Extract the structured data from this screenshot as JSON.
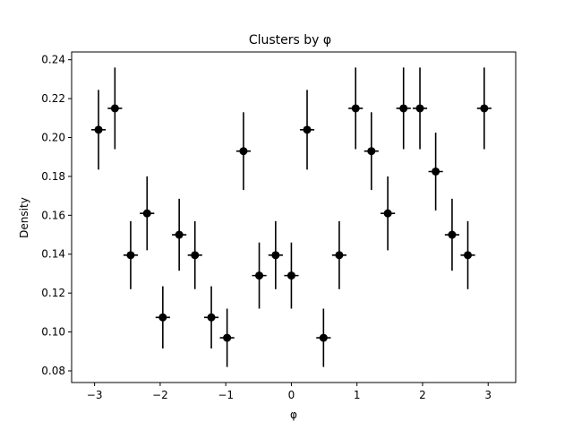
{
  "chart_data": {
    "type": "scatter",
    "title": "Clusters by φ",
    "xlabel": "φ",
    "ylabel": "Density",
    "xlim": [
      -3.35,
      3.42
    ],
    "ylim": [
      0.074,
      0.244
    ],
    "x_ticks": [
      -3,
      -2,
      -1,
      0,
      1,
      2,
      3
    ],
    "x_tick_labels": [
      "−3",
      "−2",
      "−1",
      "0",
      "1",
      "2",
      "3"
    ],
    "y_ticks": [
      0.08,
      0.1,
      0.12,
      0.14,
      0.16,
      0.18,
      0.2,
      0.22,
      0.24
    ],
    "y_tick_labels": [
      "0.08",
      "0.10",
      "0.12",
      "0.14",
      "0.16",
      "0.18",
      "0.20",
      "0.22",
      "0.24"
    ],
    "grid": false,
    "marker_color": "#000000",
    "x_error_halfwidth": 0.11,
    "points": [
      {
        "x": -2.94,
        "y": 0.204,
        "yerr": 0.0205
      },
      {
        "x": -2.69,
        "y": 0.215,
        "yerr": 0.021
      },
      {
        "x": -2.45,
        "y": 0.1395,
        "yerr": 0.0175
      },
      {
        "x": -2.2,
        "y": 0.161,
        "yerr": 0.019
      },
      {
        "x": -1.96,
        "y": 0.1075,
        "yerr": 0.016
      },
      {
        "x": -1.71,
        "y": 0.15,
        "yerr": 0.0185
      },
      {
        "x": -1.47,
        "y": 0.1395,
        "yerr": 0.0175
      },
      {
        "x": -1.22,
        "y": 0.1075,
        "yerr": 0.016
      },
      {
        "x": -0.98,
        "y": 0.097,
        "yerr": 0.015
      },
      {
        "x": -0.73,
        "y": 0.193,
        "yerr": 0.02
      },
      {
        "x": -0.49,
        "y": 0.129,
        "yerr": 0.017
      },
      {
        "x": -0.24,
        "y": 0.1395,
        "yerr": 0.0175
      },
      {
        "x": 0.0,
        "y": 0.129,
        "yerr": 0.017
      },
      {
        "x": 0.24,
        "y": 0.204,
        "yerr": 0.0205
      },
      {
        "x": 0.49,
        "y": 0.097,
        "yerr": 0.015
      },
      {
        "x": 0.73,
        "y": 0.1395,
        "yerr": 0.0175
      },
      {
        "x": 0.98,
        "y": 0.215,
        "yerr": 0.021
      },
      {
        "x": 1.22,
        "y": 0.193,
        "yerr": 0.02
      },
      {
        "x": 1.47,
        "y": 0.161,
        "yerr": 0.019
      },
      {
        "x": 1.71,
        "y": 0.215,
        "yerr": 0.021
      },
      {
        "x": 1.96,
        "y": 0.215,
        "yerr": 0.021
      },
      {
        "x": 2.2,
        "y": 0.1825,
        "yerr": 0.02
      },
      {
        "x": 2.45,
        "y": 0.15,
        "yerr": 0.0185
      },
      {
        "x": 2.69,
        "y": 0.1395,
        "yerr": 0.0175
      },
      {
        "x": 2.94,
        "y": 0.215,
        "yerr": 0.021
      }
    ]
  }
}
